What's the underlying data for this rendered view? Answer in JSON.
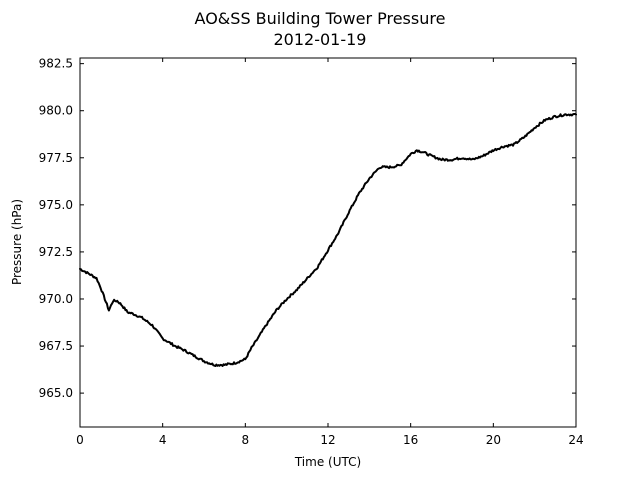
{
  "chart_data": {
    "type": "line",
    "title": "AO&SS Building Tower Pressure",
    "subtitle": "2012-01-19",
    "xlabel": "Time (UTC)",
    "ylabel": "Pressure (hPa)",
    "xlim": [
      0,
      24
    ],
    "ylim": [
      963.2,
      982.8
    ],
    "xticks": [
      0,
      4,
      8,
      12,
      16,
      20,
      24
    ],
    "xtick_labels": [
      "0",
      "4",
      "8",
      "12",
      "16",
      "20",
      "24"
    ],
    "yticks": [
      965.0,
      967.5,
      970.0,
      972.5,
      975.0,
      977.5,
      980.0,
      982.5
    ],
    "ytick_labels": [
      "965.0",
      "967.5",
      "970.0",
      "972.5",
      "975.0",
      "977.5",
      "980.0",
      "982.5"
    ],
    "grid": false,
    "line_color": "#000000",
    "series": [
      {
        "x": [
          0,
          0.5,
          0.8,
          1.0,
          1.2,
          1.4,
          1.6,
          1.8,
          2.0,
          2.3,
          2.6,
          3.0,
          3.5,
          4.0,
          4.3,
          4.6,
          5.0,
          5.5,
          6.0,
          6.5,
          7.0,
          7.5,
          8.0,
          8.3,
          8.6,
          9.0,
          9.5,
          10.0,
          10.5,
          11.0,
          11.5,
          12.0,
          12.5,
          13.0,
          13.5,
          14.0,
          14.5,
          15.0,
          15.5,
          16.0,
          16.3,
          16.6,
          17.0,
          17.5,
          18.0,
          18.5,
          19.0,
          19.5,
          20.0,
          20.5,
          21.0,
          21.5,
          22.0,
          22.5,
          23.0,
          23.5,
          24.0
        ],
        "y": [
          971.6,
          971.3,
          971.1,
          970.6,
          970.0,
          969.4,
          969.9,
          969.9,
          969.7,
          969.3,
          969.2,
          969.0,
          968.6,
          967.9,
          967.7,
          967.5,
          967.3,
          967.0,
          966.7,
          966.5,
          966.5,
          966.6,
          966.8,
          967.4,
          967.9,
          968.6,
          969.4,
          970.0,
          970.5,
          971.1,
          971.7,
          972.6,
          973.5,
          974.6,
          975.6,
          976.4,
          977.0,
          977.0,
          977.1,
          977.7,
          977.9,
          977.8,
          977.6,
          977.4,
          977.4,
          977.5,
          977.4,
          977.6,
          977.9,
          978.1,
          978.2,
          978.6,
          979.1,
          979.5,
          979.7,
          979.8,
          979.8
        ]
      }
    ]
  }
}
